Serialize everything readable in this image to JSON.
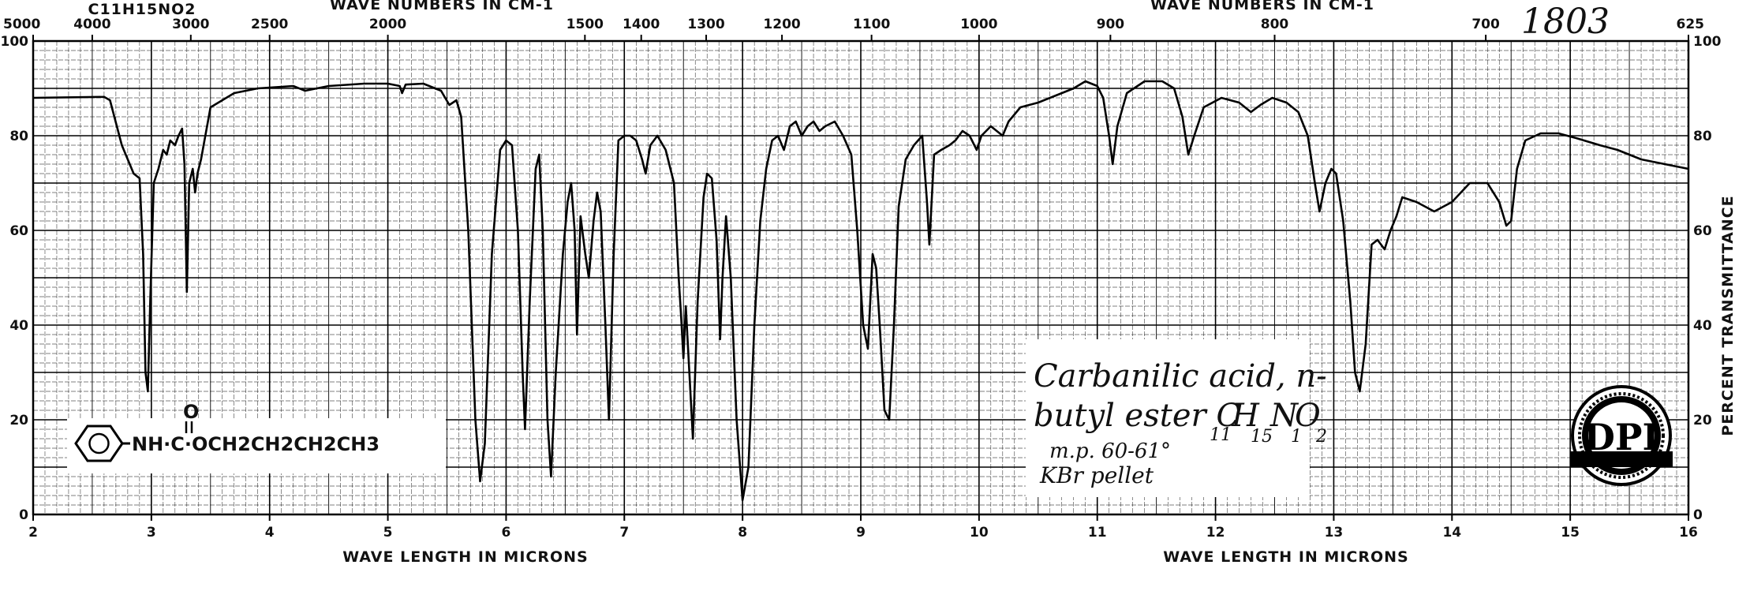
{
  "chart_data": {
    "type": "line",
    "title": "",
    "top_axis_title": "WAVE NUMBERS IN CM-1",
    "top_left_fragment": "C11H15NO2",
    "xlabel": "WAVE LENGTH IN MICRONS",
    "ylabel": "PERCENT TRANSMITTANCE",
    "xlim": [
      2,
      16
    ],
    "ylim": [
      0,
      100
    ],
    "grid": true,
    "x_ticks": [
      "2",
      "3",
      "4",
      "5",
      "6",
      "7",
      "8",
      "9",
      "10",
      "11",
      "12",
      "13",
      "14",
      "15",
      "16"
    ],
    "y_ticks_left": [
      "0",
      "20",
      "40",
      "60",
      "80",
      "100"
    ],
    "y_ticks_right": [
      "0",
      "20",
      "40",
      "60",
      "80",
      "100"
    ],
    "wavenumber_ticks": [
      {
        "label": "5000",
        "micron": 2.0
      },
      {
        "label": "4000",
        "micron": 2.5
      },
      {
        "label": "3000",
        "micron": 3.3333
      },
      {
        "label": "2500",
        "micron": 4.0
      },
      {
        "label": "2000",
        "micron": 5.0
      },
      {
        "label": "1500",
        "micron": 6.6667
      },
      {
        "label": "1400",
        "micron": 7.1429
      },
      {
        "label": "1300",
        "micron": 7.6923
      },
      {
        "label": "1200",
        "micron": 8.3333
      },
      {
        "label": "1100",
        "micron": 9.0909
      },
      {
        "label": "1000",
        "micron": 10.0
      },
      {
        "label": "900",
        "micron": 11.1111
      },
      {
        "label": "800",
        "micron": 12.5
      },
      {
        "label": "700",
        "micron": 14.2857
      },
      {
        "label": "625",
        "micron": 16.0
      }
    ],
    "series": [
      {
        "line_color": "#000000",
        "points": [
          [
            2.0,
            88
          ],
          [
            2.6,
            88.2
          ],
          [
            2.65,
            87.5
          ],
          [
            2.75,
            78
          ],
          [
            2.85,
            72
          ],
          [
            2.9,
            71
          ],
          [
            2.93,
            55
          ],
          [
            2.95,
            30
          ],
          [
            2.97,
            26
          ],
          [
            2.99,
            45
          ],
          [
            3.02,
            70
          ],
          [
            3.06,
            73
          ],
          [
            3.1,
            77
          ],
          [
            3.13,
            76
          ],
          [
            3.16,
            79
          ],
          [
            3.2,
            78
          ],
          [
            3.23,
            80
          ],
          [
            3.26,
            81.5
          ],
          [
            3.28,
            74
          ],
          [
            3.3,
            47
          ],
          [
            3.32,
            70
          ],
          [
            3.35,
            73
          ],
          [
            3.37,
            68
          ],
          [
            3.39,
            72
          ],
          [
            3.42,
            75
          ],
          [
            3.5,
            86
          ],
          [
            3.7,
            89
          ],
          [
            3.9,
            90
          ],
          [
            4.2,
            90.5
          ],
          [
            4.3,
            89.5
          ],
          [
            4.5,
            90.5
          ],
          [
            4.8,
            91
          ],
          [
            5.0,
            91
          ],
          [
            5.1,
            90.5
          ],
          [
            5.12,
            89
          ],
          [
            5.15,
            90.8
          ],
          [
            5.3,
            91
          ],
          [
            5.45,
            89.5
          ],
          [
            5.52,
            86.5
          ],
          [
            5.58,
            87.5
          ],
          [
            5.62,
            84
          ],
          [
            5.68,
            60
          ],
          [
            5.74,
            20
          ],
          [
            5.78,
            7
          ],
          [
            5.82,
            15
          ],
          [
            5.88,
            55
          ],
          [
            5.95,
            77
          ],
          [
            6.0,
            79
          ],
          [
            6.05,
            78
          ],
          [
            6.1,
            60
          ],
          [
            6.14,
            30
          ],
          [
            6.16,
            18
          ],
          [
            6.2,
            45
          ],
          [
            6.25,
            73
          ],
          [
            6.28,
            76
          ],
          [
            6.31,
            60
          ],
          [
            6.35,
            20
          ],
          [
            6.38,
            8
          ],
          [
            6.42,
            30
          ],
          [
            6.48,
            55
          ],
          [
            6.52,
            66
          ],
          [
            6.55,
            70
          ],
          [
            6.58,
            60
          ],
          [
            6.6,
            38
          ],
          [
            6.63,
            63
          ],
          [
            6.67,
            55
          ],
          [
            6.7,
            50
          ],
          [
            6.74,
            62
          ],
          [
            6.77,
            68
          ],
          [
            6.8,
            64
          ],
          [
            6.84,
            40
          ],
          [
            6.87,
            20
          ],
          [
            6.91,
            55
          ],
          [
            6.95,
            79
          ],
          [
            7.0,
            80
          ],
          [
            7.05,
            80
          ],
          [
            7.1,
            79
          ],
          [
            7.15,
            75
          ],
          [
            7.18,
            72
          ],
          [
            7.22,
            78
          ],
          [
            7.28,
            80
          ],
          [
            7.35,
            77
          ],
          [
            7.42,
            70
          ],
          [
            7.46,
            50
          ],
          [
            7.48,
            42
          ],
          [
            7.5,
            33
          ],
          [
            7.52,
            44
          ],
          [
            7.55,
            30
          ],
          [
            7.58,
            16
          ],
          [
            7.62,
            45
          ],
          [
            7.67,
            67
          ],
          [
            7.7,
            72
          ],
          [
            7.74,
            71
          ],
          [
            7.78,
            58
          ],
          [
            7.81,
            37
          ],
          [
            7.83,
            50
          ],
          [
            7.86,
            63
          ],
          [
            7.9,
            50
          ],
          [
            7.95,
            20
          ],
          [
            8.0,
            3
          ],
          [
            8.05,
            10
          ],
          [
            8.1,
            40
          ],
          [
            8.15,
            62
          ],
          [
            8.2,
            73
          ],
          [
            8.25,
            79
          ],
          [
            8.3,
            80
          ],
          [
            8.35,
            77
          ],
          [
            8.4,
            82
          ],
          [
            8.45,
            83
          ],
          [
            8.5,
            80
          ],
          [
            8.55,
            82
          ],
          [
            8.6,
            83
          ],
          [
            8.65,
            81
          ],
          [
            8.7,
            82
          ],
          [
            8.78,
            83
          ],
          [
            8.85,
            80
          ],
          [
            8.92,
            76
          ],
          [
            8.97,
            60
          ],
          [
            9.02,
            40
          ],
          [
            9.06,
            35
          ],
          [
            9.1,
            55
          ],
          [
            9.13,
            52
          ],
          [
            9.16,
            40
          ],
          [
            9.2,
            22
          ],
          [
            9.24,
            20
          ],
          [
            9.28,
            40
          ],
          [
            9.32,
            65
          ],
          [
            9.38,
            75
          ],
          [
            9.45,
            78
          ],
          [
            9.52,
            80
          ],
          [
            9.56,
            66
          ],
          [
            9.58,
            57
          ],
          [
            9.62,
            76
          ],
          [
            9.68,
            77
          ],
          [
            9.75,
            78
          ],
          [
            9.8,
            79
          ],
          [
            9.86,
            81
          ],
          [
            9.92,
            80
          ],
          [
            9.96,
            78
          ],
          [
            9.98,
            77
          ],
          [
            10.02,
            80
          ],
          [
            10.1,
            82
          ],
          [
            10.2,
            80
          ],
          [
            10.25,
            83
          ],
          [
            10.35,
            86
          ],
          [
            10.5,
            87
          ],
          [
            10.7,
            89
          ],
          [
            10.8,
            90
          ],
          [
            10.9,
            91.5
          ],
          [
            11.0,
            90.5
          ],
          [
            11.05,
            88
          ],
          [
            11.1,
            80
          ],
          [
            11.13,
            74
          ],
          [
            11.17,
            82
          ],
          [
            11.25,
            89
          ],
          [
            11.4,
            91.5
          ],
          [
            11.55,
            91.5
          ],
          [
            11.65,
            90
          ],
          [
            11.72,
            84
          ],
          [
            11.77,
            76
          ],
          [
            11.82,
            80
          ],
          [
            11.9,
            86
          ],
          [
            12.05,
            88
          ],
          [
            12.2,
            87
          ],
          [
            12.3,
            85
          ],
          [
            12.38,
            86.5
          ],
          [
            12.48,
            88
          ],
          [
            12.6,
            87
          ],
          [
            12.7,
            85
          ],
          [
            12.78,
            80
          ],
          [
            12.84,
            70
          ],
          [
            12.88,
            64
          ],
          [
            12.93,
            70
          ],
          [
            12.98,
            73
          ],
          [
            13.02,
            72
          ],
          [
            13.08,
            62
          ],
          [
            13.14,
            45
          ],
          [
            13.18,
            30
          ],
          [
            13.22,
            26
          ],
          [
            13.27,
            36
          ],
          [
            13.32,
            57
          ],
          [
            13.37,
            58
          ],
          [
            13.43,
            56
          ],
          [
            13.48,
            60
          ],
          [
            13.53,
            63
          ],
          [
            13.58,
            67
          ],
          [
            13.7,
            66
          ],
          [
            13.85,
            64
          ],
          [
            14.0,
            66
          ],
          [
            14.15,
            70
          ],
          [
            14.3,
            70
          ],
          [
            14.4,
            66
          ],
          [
            14.46,
            61
          ],
          [
            14.5,
            62
          ],
          [
            14.55,
            73
          ],
          [
            14.62,
            79
          ],
          [
            14.75,
            80.5
          ],
          [
            14.9,
            80.5
          ],
          [
            15.05,
            79.5
          ],
          [
            15.25,
            78
          ],
          [
            15.4,
            77
          ],
          [
            15.6,
            75
          ],
          [
            15.8,
            74
          ],
          [
            16.0,
            73
          ]
        ]
      }
    ]
  },
  "annotations": {
    "serial_number": "1803",
    "compound_line1": "Carbanilic acid, n-",
    "compound_line2": "butyl ester C",
    "formula_c": "11",
    "formula_h": "15",
    "formula_n": "1",
    "formula_o": "2",
    "formula_letters": [
      "C",
      "H",
      "N",
      "O"
    ],
    "melting_point": "m.p. 60-61°",
    "sample_prep": "KBr pellet",
    "structure_text": "NH·C·OCH2CH2CH2CH3",
    "structure_carbonyl": "O",
    "logo_text": "DISTILLATION PRODUCTS INDUSTRIES · EASTMAN KODAK COMPANY · ROCHESTER, N.Y."
  }
}
